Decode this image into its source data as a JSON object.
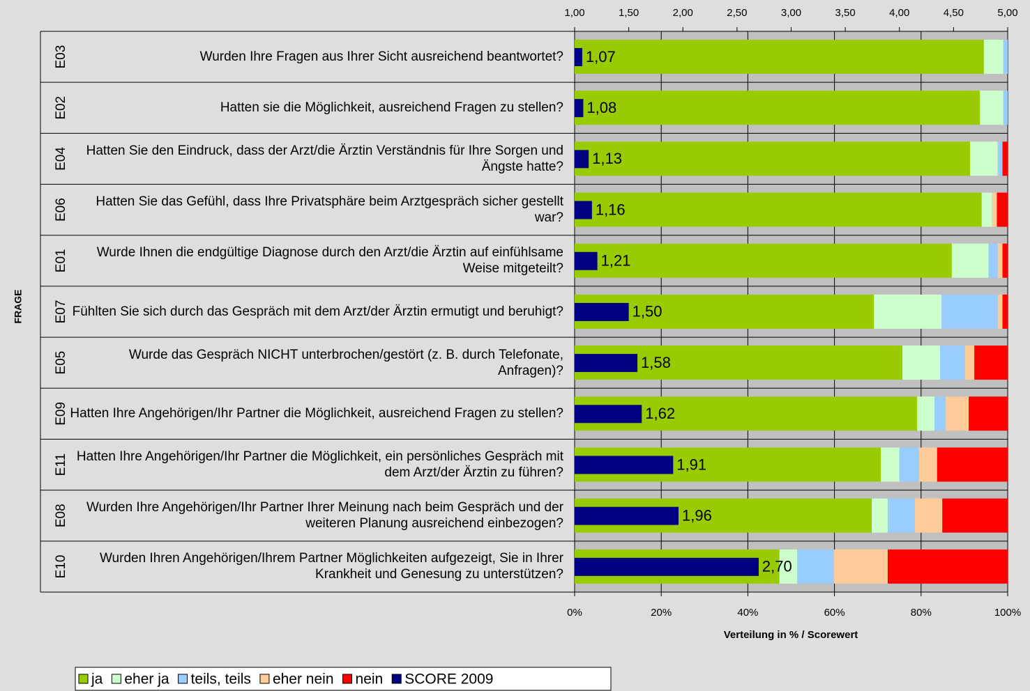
{
  "chart_data": {
    "type": "stacked-bar-horizontal",
    "y_axis_label": "FRAGE",
    "x_axis_label": "Verteilung in % / Scorewert",
    "codes": [
      "E03",
      "E02",
      "E04",
      "E06",
      "E01",
      "E07",
      "E05",
      "E09",
      "E11",
      "E08",
      "E10"
    ],
    "categories": [
      "Wurden Ihre Fragen aus Ihrer Sicht ausreichend beantwortet?",
      "Hatten sie die Möglichkeit, ausreichend Fragen zu stellen?",
      "Hatten Sie den Eindruck, dass der Arzt/die Ärztin Verständnis für Ihre Sorgen und Ängste hatte?",
      "Hatten Sie das Gefühl, dass Ihre Privatsphäre beim Arztgespräch sicher gestellt war?",
      "Wurde Ihnen die endgültige Diagnose durch den Arzt/die Ärztin auf einfühlsame Weise mitgeteilt?",
      "Fühlten Sie sich durch das Gespräch mit dem Arzt/der Ärztin ermutigt und beruhigt?",
      "Wurde das Gespräch NICHT unterbrochen/gestört (z. B. durch Telefonate, Anfragen)?",
      "Hatten Ihre Angehörigen/Ihr Partner die Möglichkeit, ausreichend Fragen zu stellen?",
      "Hatten Ihre Angehörigen/Ihr Partner die Möglichkeit, ein persönliches Gespräch mit dem Arzt/der Ärztin zu führen?",
      "Wurden Ihre Angehörigen/Ihr Partner Ihrer Meinung nach beim Gespräch und der weiteren Planung ausreichend einbezogen?",
      "Wurden Ihren Angehörigen/Ihrem Partner Möglichkeiten aufgezeigt, Sie in Ihrer Krankheit und Genesung zu unterstützen?"
    ],
    "series": [
      {
        "name": "ja",
        "color": "#99cc00",
        "values": [
          94.5,
          93.6,
          91.3,
          94.0,
          87.1,
          69.1,
          75.7,
          79.1,
          70.7,
          68.6,
          47.3
        ]
      },
      {
        "name": "eher ja",
        "color": "#ccffcc",
        "values": [
          4.5,
          5.4,
          6.4,
          2.4,
          8.5,
          15.6,
          8.7,
          4.0,
          4.3,
          3.7,
          4.1
        ]
      },
      {
        "name": "teils, teils",
        "color": "#99ccff",
        "values": [
          1.0,
          1.0,
          1.1,
          0,
          2.1,
          13.0,
          5.8,
          2.6,
          4.5,
          6.3,
          8.5
        ]
      },
      {
        "name": "eher nein",
        "color": "#ffcc99",
        "values": [
          0,
          0,
          0,
          1.1,
          1.1,
          1.1,
          2.1,
          5.3,
          4.2,
          6.3,
          12.4
        ]
      },
      {
        "name": "nein",
        "color": "#ff0000",
        "values": [
          0,
          0,
          1.2,
          2.5,
          1.2,
          1.2,
          7.7,
          9.0,
          16.3,
          15.1,
          27.7
        ]
      },
      {
        "name": "SCORE 2009",
        "color": "#000080",
        "axis": "x2",
        "values": [
          1.07,
          1.08,
          1.13,
          1.16,
          1.21,
          1.5,
          1.58,
          1.62,
          1.91,
          1.96,
          2.7
        ],
        "value_labels": [
          "1,07",
          "1,08",
          "1,13",
          "1,16",
          "1,21",
          "1,50",
          "1,58",
          "1,62",
          "1,91",
          "1,96",
          "2,70"
        ]
      }
    ],
    "xlim": [
      0,
      100
    ],
    "xticks": [
      {
        "value": 0,
        "label": "0%"
      },
      {
        "value": 20,
        "label": "20%"
      },
      {
        "value": 40,
        "label": "40%"
      },
      {
        "value": 60,
        "label": "60%"
      },
      {
        "value": 80,
        "label": "80%"
      },
      {
        "value": 100,
        "label": "100%"
      }
    ],
    "x2lim": [
      1,
      5
    ],
    "x2ticks": [
      {
        "value": 1,
        "label": "1,00"
      },
      {
        "value": 1.5,
        "label": "1,50"
      },
      {
        "value": 2,
        "label": "2,00"
      },
      {
        "value": 2.5,
        "label": "2,50"
      },
      {
        "value": 3,
        "label": "3,00"
      },
      {
        "value": 3.5,
        "label": "3,50"
      },
      {
        "value": 4,
        "label": "4,00"
      },
      {
        "value": 4.5,
        "label": "4,50"
      },
      {
        "value": 5,
        "label": "5,00"
      }
    ],
    "grid": true,
    "legend": "bottom-left"
  }
}
